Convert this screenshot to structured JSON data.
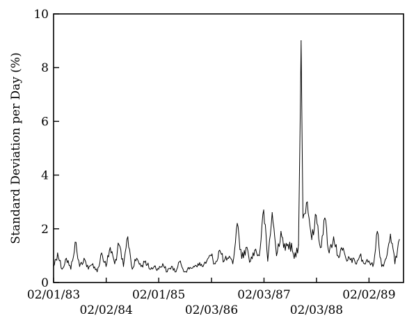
{
  "chart_data": {
    "type": "line",
    "title": "",
    "xlabel": "",
    "ylabel": "Standard Deviation per Day (%)",
    "ylim": [
      0,
      10
    ],
    "xlim": [
      "1983-02-01",
      "1989-09-30"
    ],
    "yticks": [
      0,
      2,
      4,
      6,
      8,
      10
    ],
    "y_tick_labels": [
      "0",
      "2",
      "4",
      "6",
      "8",
      "10"
    ],
    "xticks": [
      {
        "date": "1983-02-01",
        "label": "02/01/83",
        "row": 1
      },
      {
        "date": "1984-02-02",
        "label": "02/02/84",
        "row": 2
      },
      {
        "date": "1985-02-01",
        "label": "02/01/85",
        "row": 1
      },
      {
        "date": "1986-02-03",
        "label": "02/03/86",
        "row": 2
      },
      {
        "date": "1987-02-03",
        "label": "02/03/87",
        "row": 1
      },
      {
        "date": "1988-02-03",
        "label": "02/03/88",
        "row": 2
      },
      {
        "date": "1989-02-02",
        "label": "02/02/89",
        "row": 1
      }
    ],
    "grid": false,
    "legend": "none",
    "line_color": "#000000",
    "series": [
      {
        "x": [
          "1983-02-01",
          "1983-03-01",
          "1983-04-01",
          "1983-05-01",
          "1983-06-01",
          "1983-07-01",
          "1983-08-01",
          "1983-09-01",
          "1983-10-01",
          "1983-11-01",
          "1983-12-01",
          "1984-01-01",
          "1984-02-01",
          "1984-03-01",
          "1984-04-01",
          "1984-05-01",
          "1984-06-01",
          "1984-07-01",
          "1984-08-01",
          "1984-09-01",
          "1984-10-01",
          "1984-11-01",
          "1984-12-01",
          "1985-01-01",
          "1985-02-01",
          "1985-03-01",
          "1985-04-01",
          "1985-05-01",
          "1985-06-01",
          "1985-07-01",
          "1985-08-01",
          "1985-09-01",
          "1985-10-01",
          "1985-11-01",
          "1985-12-01",
          "1986-01-01",
          "1986-02-01",
          "1986-03-01",
          "1986-04-01",
          "1986-05-01",
          "1986-06-01",
          "1986-07-01",
          "1986-08-01",
          "1986-09-01",
          "1986-10-01",
          "1986-11-01",
          "1986-12-01",
          "1987-01-01",
          "1987-02-01",
          "1987-03-01",
          "1987-04-01",
          "1987-05-01",
          "1987-06-01",
          "1987-07-01",
          "1987-08-01",
          "1987-09-01",
          "1987-10-01",
          "1987-10-19",
          "1987-11-01",
          "1987-12-01",
          "1988-01-01",
          "1988-02-01",
          "1988-03-01",
          "1988-04-01",
          "1988-05-01",
          "1988-06-01",
          "1988-07-01",
          "1988-08-01",
          "1988-09-01",
          "1988-10-01",
          "1988-11-01",
          "1988-12-01",
          "1989-01-01",
          "1989-02-01",
          "1989-03-01",
          "1989-04-01",
          "1989-05-01",
          "1989-06-01",
          "1989-07-01",
          "1989-08-01",
          "1989-09-01"
        ],
        "values": [
          0.6,
          1.1,
          0.5,
          0.9,
          0.5,
          1.5,
          0.6,
          0.9,
          0.5,
          0.7,
          0.4,
          1.1,
          0.6,
          1.3,
          0.7,
          1.4,
          0.6,
          1.7,
          0.5,
          0.9,
          0.6,
          0.8,
          0.5,
          0.6,
          0.5,
          0.7,
          0.4,
          0.6,
          0.4,
          0.8,
          0.4,
          0.5,
          0.6,
          0.7,
          0.6,
          0.8,
          1.0,
          0.7,
          1.2,
          0.8,
          0.9,
          0.7,
          2.2,
          0.9,
          1.3,
          0.8,
          1.2,
          1.0,
          2.7,
          0.8,
          2.6,
          1.0,
          1.9,
          1.2,
          1.5,
          0.9,
          1.4,
          9.0,
          2.4,
          3.0,
          1.6,
          2.5,
          1.3,
          2.4,
          1.1,
          1.7,
          1.0,
          1.2,
          0.8,
          0.9,
          0.7,
          1.0,
          0.7,
          0.8,
          0.6,
          1.9,
          0.6,
          0.9,
          1.8,
          0.7,
          1.6
        ]
      }
    ]
  }
}
